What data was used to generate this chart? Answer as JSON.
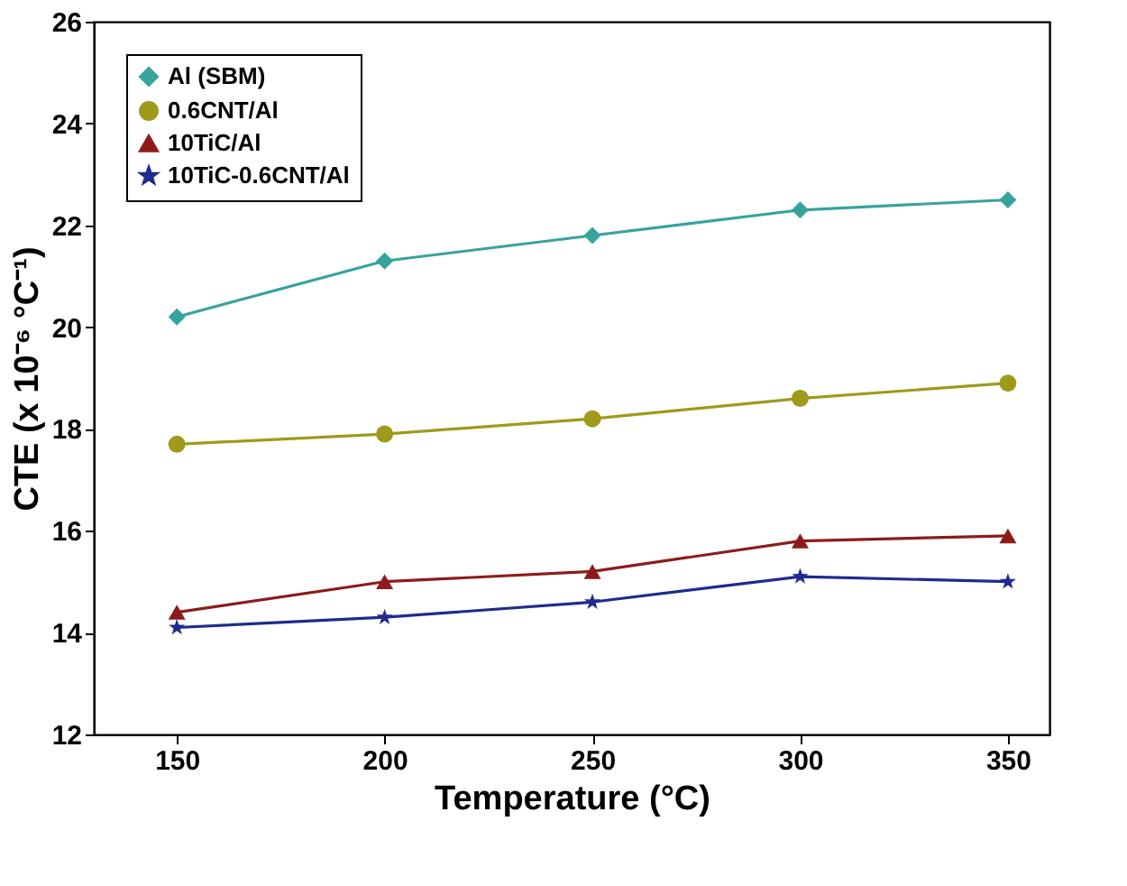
{
  "chart_data": {
    "type": "line",
    "xlabel": "Temperature (°C)",
    "ylabel": "CTE (x 10⁻⁶ °C⁻¹)",
    "x": [
      150,
      200,
      250,
      300,
      350
    ],
    "xlim": [
      130,
      360
    ],
    "xticks": [
      150,
      200,
      250,
      300,
      350
    ],
    "ylim": [
      12,
      26
    ],
    "yticks": [
      12,
      14,
      16,
      18,
      20,
      22,
      24,
      26
    ],
    "grid": false,
    "legend": "top left",
    "series": [
      {
        "name": "Al (SBM)",
        "color": "#37a39d",
        "marker": "diamond",
        "values": [
          20.2,
          21.3,
          21.8,
          22.3,
          22.5
        ]
      },
      {
        "name": "0.6CNT/Al",
        "color": "#9f9a1c",
        "marker": "circle",
        "values": [
          17.7,
          17.9,
          18.2,
          18.6,
          18.9
        ]
      },
      {
        "name": "10TiC/Al",
        "color": "#8e1b1b",
        "marker": "triangle",
        "values": [
          14.4,
          15.0,
          15.2,
          15.8,
          15.9
        ]
      },
      {
        "name": "10TiC-0.6CNT/Al",
        "color": "#1f2b8f",
        "marker": "star",
        "values": [
          14.1,
          14.3,
          14.6,
          15.1,
          15.0
        ]
      }
    ]
  }
}
